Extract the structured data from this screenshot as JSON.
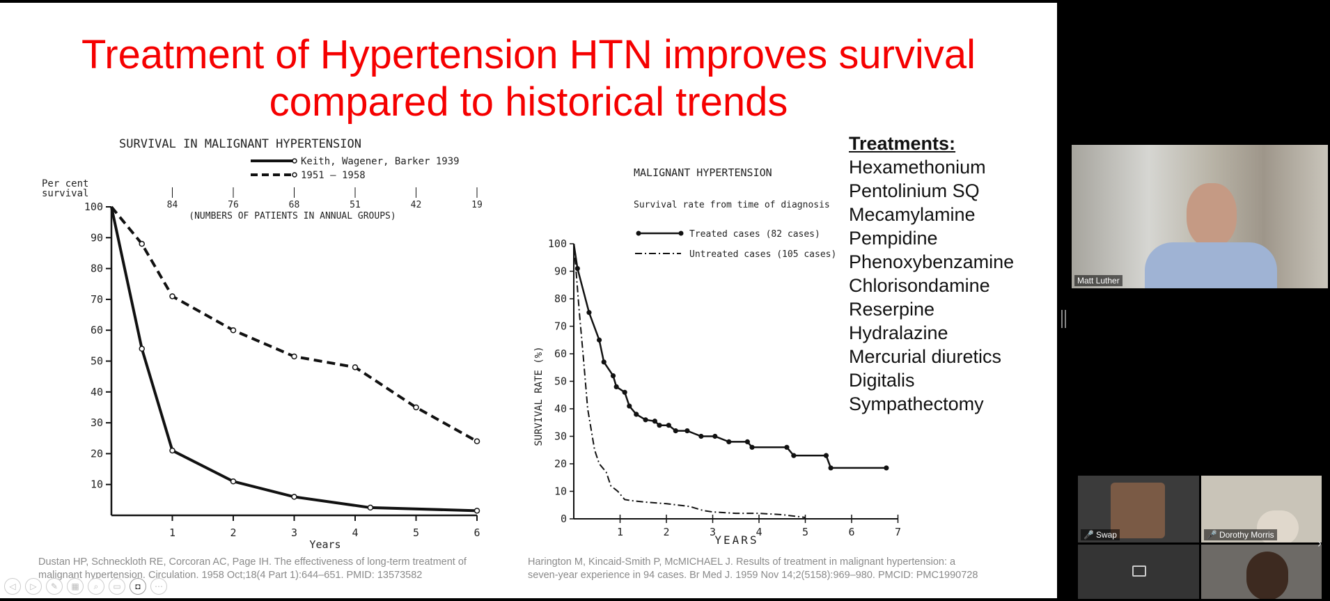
{
  "slide": {
    "title_line1": "Treatment of Hypertension HTN improves survival",
    "title_line2": "compared to historical trends",
    "treatments": {
      "header": "Treatments:",
      "items": [
        "Hexamethonium",
        "Pentolinium SQ",
        "Mecamylamine",
        "Pempidine",
        "Phenoxybenzamine",
        "Chlorisondamine",
        "Reserpine",
        "Hydralazine",
        "Mercurial diuretics",
        "Digitalis",
        "Sympathectomy"
      ]
    },
    "citation_left": [
      "Dustan HP, Schneckloth RE, Corcoran AC, Page IH. The effectiveness of long-term treatment of",
      "malignant hypertension. Circulation. 1958 Oct;18(4 Part 1):644–651. PMID: 13573582"
    ],
    "citation_right": [
      "Harington M, Kincaid-Smith P, McMICHAEL J. Results of treatment in malignant hypertension: a",
      "seven-year experience in 94 cases. Br Med J. 1959 Nov 14;2(5158):969–980. PMCID: PMC1990728"
    ]
  },
  "chart_data": [
    {
      "type": "line",
      "title": "SURVIVAL IN MALIGNANT HYPERTENSION",
      "xlabel": "Years",
      "ylabel": "Per cent survival",
      "ylim": [
        0,
        100
      ],
      "xlim": [
        0,
        6
      ],
      "yticks": [
        "100",
        "90",
        "80",
        "70",
        "60",
        "50",
        "40",
        "30",
        "20",
        "10"
      ],
      "xticks": [
        "1",
        "2",
        "3",
        "4",
        "5",
        "6"
      ],
      "top_axis_label": "(NUMBERS OF PATIENTS IN ANNUAL GROUPS)",
      "top_axis_values": [
        "84",
        "76",
        "68",
        "51",
        "42",
        "19"
      ],
      "legend_position": "top-right",
      "series": [
        {
          "name": "Keith, Wagener, Barker  1939",
          "style": "solid",
          "x": [
            0,
            0.5,
            1,
            2,
            3,
            4.25,
            6
          ],
          "y": [
            100,
            54,
            21,
            11,
            6,
            2.5,
            1.5
          ]
        },
        {
          "name": "1951 – 1958",
          "style": "dashed",
          "x": [
            0,
            0.5,
            1,
            2,
            3,
            4,
            5,
            6
          ],
          "y": [
            100,
            88,
            71,
            60,
            51.5,
            48,
            35,
            24
          ]
        }
      ]
    },
    {
      "type": "line",
      "title": "MALIGNANT HYPERTENSION",
      "subtitle": "Survival rate from time of diagnosis",
      "xlabel": "YEARS",
      "ylabel": "SURVIVAL RATE (%)",
      "ylim": [
        0,
        100
      ],
      "xlim": [
        0,
        7
      ],
      "yticks": [
        "100",
        "90",
        "80",
        "70",
        "60",
        "50",
        "40",
        "30",
        "20",
        "10",
        "0"
      ],
      "xticks": [
        "1",
        "2",
        "3",
        "4",
        "5",
        "6",
        "7"
      ],
      "legend_position": "top-center",
      "series": [
        {
          "name": "Treated cases  (82 cases)",
          "style": "solid-dots",
          "x": [
            0,
            0.08,
            0.33,
            0.55,
            0.65,
            0.85,
            0.92,
            1.1,
            1.2,
            1.35,
            1.55,
            1.75,
            1.85,
            2.05,
            2.2,
            2.45,
            2.75,
            3.05,
            3.35,
            3.75,
            3.85,
            4.6,
            4.75,
            5.45,
            5.55,
            6.75
          ],
          "y": [
            100,
            91,
            75,
            65,
            57,
            52,
            48,
            46,
            41,
            38,
            36,
            35.5,
            34,
            34,
            32,
            32,
            30,
            30,
            28,
            28,
            26,
            26,
            23,
            23,
            18.5,
            18.5
          ]
        },
        {
          "name": "Untreated cases  (105 cases)",
          "style": "dash-dot",
          "x": [
            0,
            0.05,
            0.12,
            0.2,
            0.3,
            0.45,
            0.55,
            0.7,
            0.8,
            0.95,
            1.1,
            1.3,
            1.6,
            2.0,
            2.5,
            2.8,
            3.0,
            3.5,
            4.0,
            4.5,
            5.0
          ],
          "y": [
            100,
            90,
            75,
            60,
            40,
            25,
            20,
            17,
            12,
            10,
            7,
            6.5,
            6,
            5.5,
            4.5,
            3,
            2.5,
            2,
            2,
            1.5,
            0.5
          ]
        }
      ]
    }
  ],
  "participants": [
    {
      "name": "Matt Luther"
    },
    {
      "name": "Swap"
    },
    {
      "name": "Dorothy Morris"
    }
  ]
}
